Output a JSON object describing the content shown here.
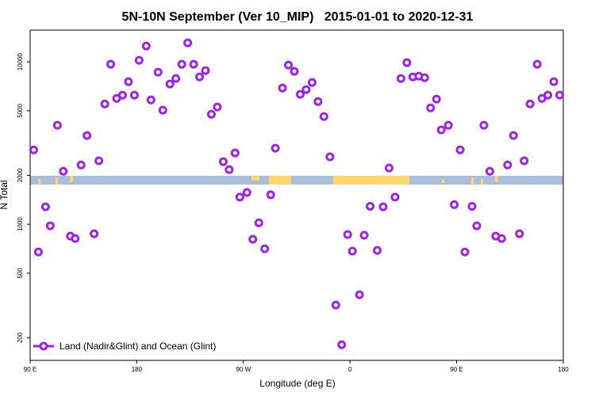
{
  "chart_data": {
    "type": "scatter",
    "title": "5N-10N September (Ver 10_MIP)   2015-01-01 to 2020-12-31",
    "xlabel": "Longitude (deg E)",
    "ylabel": "N Total",
    "x": [
      93,
      97,
      103,
      107,
      113,
      118,
      124,
      128,
      133,
      138,
      144,
      148,
      153,
      158,
      163,
      168,
      173,
      178,
      182,
      188,
      192,
      198,
      202,
      208,
      213,
      218,
      223,
      228,
      233,
      238,
      243,
      248,
      253,
      258,
      263,
      267,
      273,
      278,
      283,
      288,
      293,
      297,
      303,
      308,
      313,
      318,
      323,
      328,
      333,
      338,
      343,
      348,
      353,
      358,
      362,
      368,
      372,
      377,
      383,
      388,
      393,
      398,
      403,
      408,
      413,
      418,
      423,
      428,
      433,
      437,
      443,
      448,
      453,
      457,
      463,
      467,
      473,
      478,
      483,
      488,
      493,
      498,
      503,
      507,
      512,
      518,
      522,
      527,
      532,
      537
    ],
    "series": [
      {
        "name": "Land (Nadir&Glint) and Ocean (Glint)",
        "color": "#a020f0",
        "values": [
          2870,
          675,
          1280,
          978,
          4070,
          2120,
          845,
          817,
          2320,
          3520,
          874,
          2460,
          5510,
          9670,
          5960,
          6240,
          7550,
          6240,
          10230,
          12520,
          5830,
          8640,
          5040,
          7300,
          7900,
          9670,
          13100,
          9670,
          8080,
          8840,
          4760,
          5270,
          2430,
          2170,
          2750,
          1470,
          1570,
          808,
          1020,
          706,
          1520,
          2940,
          6900,
          9560,
          8740,
          6310,
          6750,
          7470,
          5700,
          4610,
          2600,
          318,
          181,
          864,
          683,
          368,
          855,
          1290,
          690,
          1280,
          2220,
          1470,
          7900,
          9890,
          8080,
          8170,
          7990,
          5210,
          5900,
          3810,
          4070,
          1320,
          2870,
          675,
          1290,
          978,
          4070,
          2120,
          845,
          817,
          2320,
          3520,
          874,
          2460,
          5510,
          9670,
          5960,
          6240,
          7550,
          6240
        ]
      }
    ],
    "xlim": [
      90,
      540
    ],
    "xticks": [
      {
        "value": 90,
        "label": "90 E"
      },
      {
        "value": 180,
        "label": "180"
      },
      {
        "value": 270,
        "label": "90 W"
      },
      {
        "value": 360,
        "label": "0"
      },
      {
        "value": 450,
        "label": "90 E"
      },
      {
        "value": 540,
        "label": "180"
      }
    ],
    "ylim": [
      145,
      15700
    ],
    "yticks": [
      200,
      500,
      1000,
      2000,
      5000,
      10000
    ],
    "log_y": true,
    "legend": "lower left"
  }
}
